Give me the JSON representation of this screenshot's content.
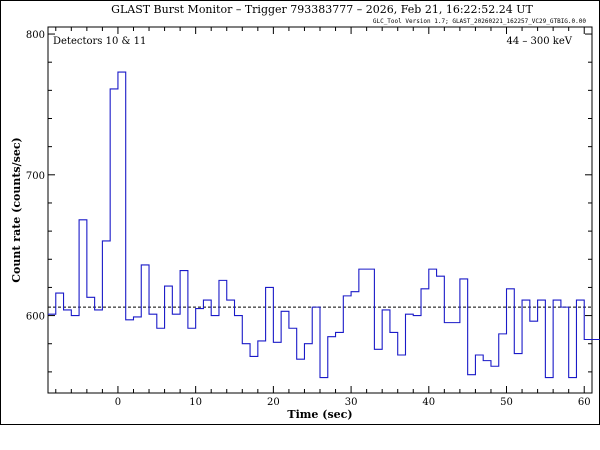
{
  "chart_data": {
    "type": "line",
    "title": "GLAST Burst Monitor  –  Trigger 793383777  –  2026, Feb 21, 16:22:52.24 UT",
    "subtitle": "GLC_Tool Version 1.7; GLAST_20260221_162257_VC29_GTBIG.0.00",
    "left_annotation": "Detectors 10 & 11",
    "right_annotation": "44 – 300 keV",
    "xlabel": "Time (sec)",
    "ylabel": "Count rate (counts/sec)",
    "xlim": [
      -9,
      61
    ],
    "ylim": [
      545,
      805
    ],
    "xticks": [
      0,
      10,
      20,
      30,
      40,
      50,
      60
    ],
    "yticks": [
      600,
      700,
      800
    ],
    "background_level": 606,
    "series": [
      {
        "x": [
          -9,
          -8,
          -7,
          -6,
          -5,
          -4,
          -3,
          -2,
          -1,
          0,
          1,
          2,
          3,
          4,
          5,
          6,
          7,
          8,
          9,
          10,
          11,
          12,
          13,
          14,
          15,
          16,
          17,
          18,
          19,
          20,
          21,
          22,
          23,
          24,
          25,
          26,
          27,
          28,
          29,
          30,
          31,
          32,
          33,
          34,
          35,
          36,
          37,
          38,
          39,
          40,
          41,
          42,
          43,
          44,
          45,
          46,
          47,
          48,
          49,
          50,
          51,
          52,
          53,
          54,
          55,
          56,
          57,
          58,
          59,
          60,
          61
        ],
        "values": [
          601,
          616,
          604,
          600,
          668,
          613,
          604,
          653,
          761,
          773,
          597,
          599,
          636,
          601,
          591,
          621,
          601,
          632,
          591,
          605,
          611,
          600,
          625,
          611,
          600,
          580,
          571,
          582,
          620,
          581,
          603,
          591,
          569,
          580,
          606,
          556,
          585,
          588,
          614,
          617,
          633,
          633,
          576,
          604,
          588,
          572,
          601,
          600,
          619,
          633,
          628,
          595,
          595,
          626,
          558,
          572,
          568,
          564,
          587,
          619,
          573,
          611,
          596,
          611,
          556,
          611,
          606,
          556,
          611,
          583,
          583
        ]
      }
    ]
  }
}
